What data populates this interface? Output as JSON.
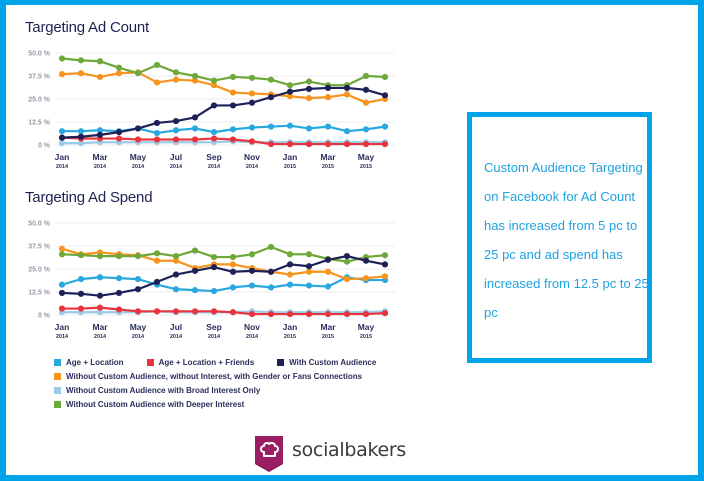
{
  "callout": {
    "text": "Custom Audience Targeting on Facebook for Ad Count has increased from 5 pc to 25 pc and ad spend has increased from 12.5 pc to 25 pc"
  },
  "logo": {
    "text": "socialbakers",
    "icon": "chef-hat-speech-bubble-icon",
    "color": "#9b1e64"
  },
  "colors": {
    "frame": "#00a3e8"
  },
  "legend": [
    {
      "label": "Age + Location",
      "color": "#29a8e0"
    },
    {
      "label": "Age + Location + Friends",
      "color": "#e8343f"
    },
    {
      "label": "With Custom Audience",
      "color": "#1d2157"
    },
    {
      "label": "Without Custom Audience, without Interest, with Gender or Fans Connections",
      "color": "#f7941d"
    },
    {
      "label": "Without Custom Audience with Broad Interest Only",
      "color": "#9ccbe8"
    },
    {
      "label": "Without Custom Audience with Deeper Interest",
      "color": "#6ea83a"
    }
  ],
  "chart_data": [
    {
      "type": "line",
      "title": "Targeting Ad Count",
      "xlabel": "",
      "ylabel": "",
      "ylim": [
        0,
        50
      ],
      "yticks": [
        "0 %",
        "12.5 %",
        "25.0 %",
        "37.5 %",
        "50.0 %"
      ],
      "ytick_values": [
        0,
        12.5,
        25,
        37.5,
        50
      ],
      "x": [
        "Jan 2014",
        "Feb 2014",
        "Mar 2014",
        "Apr 2014",
        "May 2014",
        "Jun 2014",
        "Jul 2014",
        "Aug 2014",
        "Sep 2014",
        "Oct 2014",
        "Nov 2014",
        "Dec 2014",
        "Jan 2015",
        "Feb 2015",
        "Mar 2015",
        "Apr 2015",
        "May 2015",
        "Jun 2015"
      ],
      "xtick_labels": [
        {
          "month": "Jan",
          "year": "2014",
          "index": 0
        },
        {
          "month": "Mar",
          "year": "2014",
          "index": 2
        },
        {
          "month": "May",
          "year": "2014",
          "index": 4
        },
        {
          "month": "Jul",
          "year": "2014",
          "index": 6
        },
        {
          "month": "Sep",
          "year": "2014",
          "index": 8
        },
        {
          "month": "Nov",
          "year": "2014",
          "index": 10
        },
        {
          "month": "Jan",
          "year": "2015",
          "index": 12
        },
        {
          "month": "Mar",
          "year": "2015",
          "index": 14
        },
        {
          "month": "May",
          "year": "2015",
          "index": 16
        }
      ],
      "grid": true,
      "legend": "bottom",
      "series": [
        {
          "name": "Age + Location",
          "values": [
            7.5,
            7.5,
            8,
            7.5,
            9,
            6.5,
            8,
            9,
            7,
            8.5,
            9.5,
            10,
            10.5,
            9,
            10,
            7.5,
            8.5,
            10
          ]
        },
        {
          "name": "Age + Location + Friends",
          "values": [
            4,
            3.5,
            3.5,
            3.5,
            3,
            3,
            3,
            3,
            3.5,
            3,
            2,
            0.5,
            0.5,
            0.5,
            0.5,
            0.5,
            0.5,
            0.5
          ]
        },
        {
          "name": "With Custom Audience",
          "values": [
            4,
            4.5,
            5.5,
            7,
            9,
            12,
            13,
            15,
            21.5,
            21.5,
            23,
            26,
            29,
            30.5,
            31,
            31,
            30,
            27
          ]
        },
        {
          "name": "Without Custom Audience, without Interest, with Gender or Fans Connections",
          "values": [
            38.5,
            39,
            37,
            39,
            39.5,
            34,
            35.5,
            35,
            32.5,
            28.5,
            28,
            27.5,
            26.5,
            25.5,
            26,
            27.5,
            23,
            25
          ]
        },
        {
          "name": "Without Custom Audience with Broad Interest Only",
          "values": [
            1,
            1,
            1.5,
            1.5,
            1.5,
            1.5,
            1.5,
            1.5,
            1.5,
            2,
            1.5,
            1.5,
            1.5,
            1.5,
            1.5,
            1.5,
            1.5,
            1.5
          ]
        },
        {
          "name": "Without Custom Audience with Deeper Interest",
          "values": [
            47,
            46,
            45.5,
            42,
            39,
            43.5,
            39.5,
            37.5,
            35,
            37,
            36.5,
            35.5,
            32.5,
            34.5,
            32.5,
            32.5,
            37.5,
            37
          ]
        }
      ]
    },
    {
      "type": "line",
      "title": "Targeting Ad Spend",
      "xlabel": "",
      "ylabel": "",
      "ylim": [
        0,
        50
      ],
      "yticks": [
        "0 %",
        "12.5 %",
        "25.0 %",
        "37.5 %",
        "50.0 %"
      ],
      "ytick_values": [
        0,
        12.5,
        25,
        37.5,
        50
      ],
      "x": [
        "Jan 2014",
        "Feb 2014",
        "Mar 2014",
        "Apr 2014",
        "May 2014",
        "Jun 2014",
        "Jul 2014",
        "Aug 2014",
        "Sep 2014",
        "Oct 2014",
        "Nov 2014",
        "Dec 2014",
        "Jan 2015",
        "Feb 2015",
        "Mar 2015",
        "Apr 2015",
        "May 2015",
        "Jun 2015"
      ],
      "xtick_labels": [
        {
          "month": "Jan",
          "year": "2014",
          "index": 0
        },
        {
          "month": "Mar",
          "year": "2014",
          "index": 2
        },
        {
          "month": "May",
          "year": "2014",
          "index": 4
        },
        {
          "month": "Jul",
          "year": "2014",
          "index": 6
        },
        {
          "month": "Sep",
          "year": "2014",
          "index": 8
        },
        {
          "month": "Nov",
          "year": "2014",
          "index": 10
        },
        {
          "month": "Jan",
          "year": "2015",
          "index": 12
        },
        {
          "month": "Mar",
          "year": "2015",
          "index": 14
        },
        {
          "month": "May",
          "year": "2015",
          "index": 16
        }
      ],
      "grid": true,
      "legend": "bottom",
      "series": [
        {
          "name": "Age + Location",
          "values": [
            16.5,
            19.5,
            20.5,
            20,
            19.5,
            16.5,
            14,
            13.5,
            13,
            15,
            16,
            15,
            16.5,
            16,
            15.5,
            20.5,
            19,
            19
          ]
        },
        {
          "name": "Age + Location + Friends",
          "values": [
            3.5,
            3.5,
            4,
            3,
            2,
            2,
            2,
            2,
            2,
            1.5,
            0.5,
            0.5,
            0.5,
            0.5,
            0.5,
            0.5,
            0.5,
            1
          ]
        },
        {
          "name": "With Custom Audience",
          "values": [
            12,
            11.5,
            10.5,
            12,
            14,
            18,
            22,
            24,
            26,
            23.5,
            24,
            23.5,
            27.5,
            26.5,
            30,
            32,
            29.5,
            27.5
          ]
        },
        {
          "name": "Without Custom Audience, without Interest, with Gender or Fans Connections",
          "values": [
            36,
            33,
            34,
            33,
            32.5,
            29.5,
            29.5,
            25.5,
            27.5,
            27.5,
            25.5,
            23.5,
            22,
            23.5,
            23.5,
            19.5,
            20,
            21
          ]
        },
        {
          "name": "Without Custom Audience with Broad Interest Only",
          "values": [
            1.5,
            1.5,
            1.5,
            1.5,
            1.5,
            2,
            1.5,
            1.5,
            1.5,
            1.5,
            2,
            1.5,
            1.5,
            1.5,
            1.5,
            1.5,
            1.5,
            2
          ]
        },
        {
          "name": "Without Custom Audience with Deeper Interest",
          "values": [
            33,
            32.5,
            32,
            32,
            32,
            33.5,
            32,
            35,
            31.5,
            31.5,
            33,
            37,
            33,
            33,
            30.5,
            29,
            31.5,
            32.5
          ]
        }
      ]
    }
  ]
}
